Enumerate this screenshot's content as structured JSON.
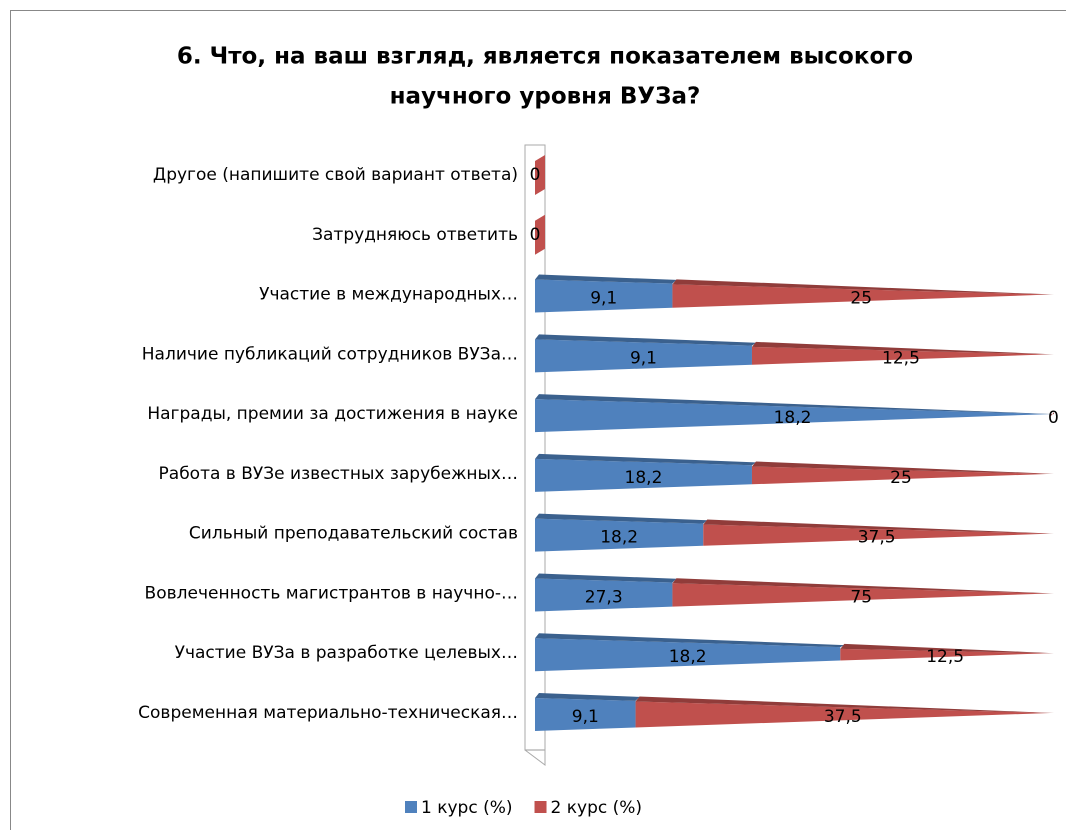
{
  "chart_data": {
    "type": "bar",
    "stacking": "percent",
    "shape": "cone",
    "title": [
      "6. Что, на ваш взгляд, является показателем высокого",
      "научного уровня ВУЗа?"
    ],
    "categories": [
      "Современная материально-техническая…",
      "Участие ВУЗа в разработке целевых…",
      "Вовлеченность магистрантов в научно-…",
      "Сильный преподавательский состав",
      "Работа в ВУЗе известных зарубежных…",
      "Награды, премии за достижения в науке",
      "Наличие публикаций сотрудников ВУЗа…",
      "Участие в международных…",
      "Затрудняюсь ответить",
      "Другое (напишите свой вариант ответа)"
    ],
    "series": [
      {
        "name": "1 курс (%)",
        "color": "#4f81bd",
        "values": [
          9.1,
          18.2,
          27.3,
          18.2,
          18.2,
          18.2,
          9.1,
          9.1,
          null,
          null
        ],
        "value_labels": [
          "9,1",
          "18,2",
          "27,3",
          "18,2",
          "18,2",
          "18,2",
          "9,1",
          "9,1",
          null,
          null
        ]
      },
      {
        "name": "2 курс (%)",
        "color": "#c0504d",
        "values": [
          37.5,
          12.5,
          75,
          37.5,
          25,
          0,
          12.5,
          25,
          0,
          0
        ],
        "value_labels": [
          "37,5",
          "12,5",
          "75",
          "37,5",
          "25",
          "0",
          "12,5",
          "25",
          "0",
          "0"
        ]
      }
    ],
    "legend": "bottom"
  }
}
